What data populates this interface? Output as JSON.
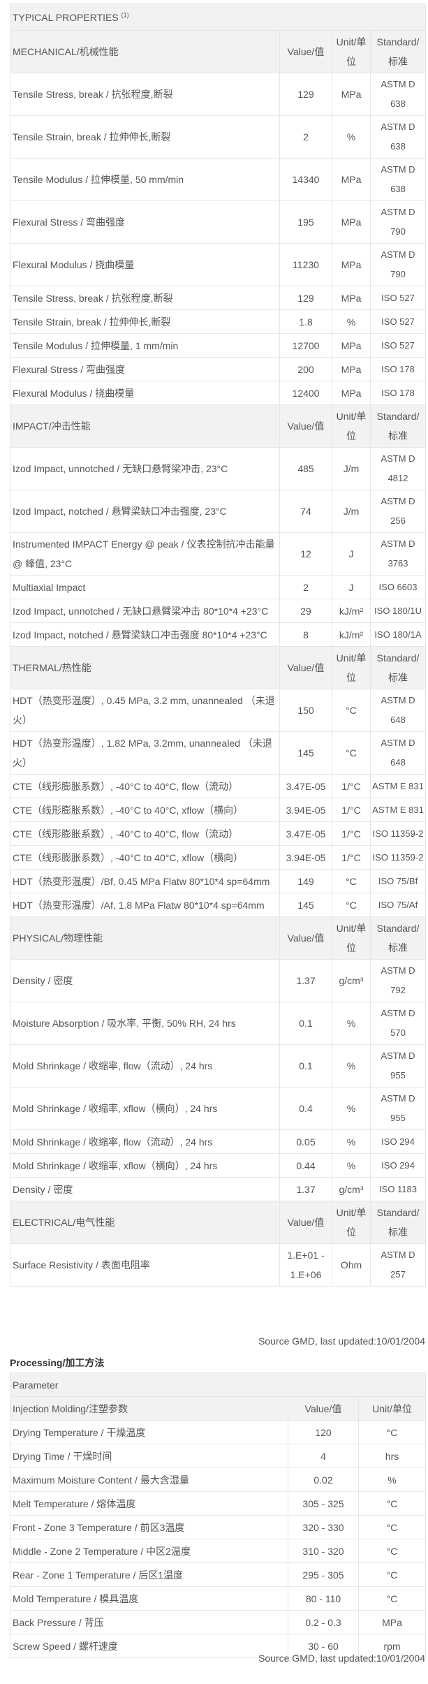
{
  "properties": {
    "title": "TYPICAL PROPERTIES",
    "title_note": "(1)",
    "col_value": "Value/值",
    "col_unit": "Unit/单位",
    "col_standard": "Standard/标准",
    "sections": [
      {
        "name": "MECHANICAL/机械性能",
        "rows": [
          {
            "property": "Tensile Stress, break / 抗张程度,断裂",
            "value": "129",
            "unit": "MPa",
            "standard": "ASTM D 638"
          },
          {
            "property": "Tensile Strain, break / 拉伸伸长,断裂",
            "value": "2",
            "unit": "%",
            "standard": "ASTM D 638"
          },
          {
            "property": "Tensile Modulus / 拉伸模量, 50 mm/min",
            "value": "14340",
            "unit": "MPa",
            "standard": "ASTM D 638"
          },
          {
            "property": "Flexural Stress / 弯曲强度",
            "value": "195",
            "unit": "MPa",
            "standard": "ASTM D 790"
          },
          {
            "property": "Flexural Modulus / 挠曲模量",
            "value": "11230",
            "unit": "MPa",
            "standard": "ASTM D 790"
          },
          {
            "property": "Tensile Stress, break / 抗张程度,断裂",
            "value": "129",
            "unit": "MPa",
            "standard": "ISO 527"
          },
          {
            "property": "Tensile Strain, break / 拉伸伸长,断裂",
            "value": "1.8",
            "unit": "%",
            "standard": "ISO 527"
          },
          {
            "property": "Tensile Modulus / 拉伸模量, 1 mm/min",
            "value": "12700",
            "unit": "MPa",
            "standard": "ISO 527"
          },
          {
            "property": "Flexural Stress / 弯曲强度",
            "value": "200",
            "unit": "MPa",
            "standard": "ISO 178"
          },
          {
            "property": "Flexural Modulus / 挠曲模量",
            "value": "12400",
            "unit": "MPa",
            "standard": "ISO 178"
          }
        ]
      },
      {
        "name": "IMPACT/冲击性能",
        "rows": [
          {
            "property": "Izod Impact, unnotched / 无缺口悬臂梁冲击, 23°C",
            "value": "485",
            "unit": "J/m",
            "standard": "ASTM D 4812"
          },
          {
            "property": "Izod Impact, notched / 悬臂梁缺口冲击强度, 23°C",
            "value": "74",
            "unit": "J/m",
            "standard": "ASTM D 256"
          },
          {
            "property": "Instrumented IMPACT Energy @ peak / 仪表控制抗冲击能量 @ 峰值, 23°C",
            "value": "12",
            "unit": "J",
            "standard": "ASTM D 3763"
          },
          {
            "property": "Multiaxial Impact",
            "value": "2",
            "unit": "J",
            "standard": "ISO 6603"
          },
          {
            "property": "Izod Impact, unnotched / 无缺口悬臂梁冲击 80*10*4 +23°C",
            "value": "29",
            "unit": "kJ/m²",
            "standard": "ISO 180/1U"
          },
          {
            "property": "Izod Impact, notched / 悬臂梁缺口冲击强度 80*10*4 +23°C",
            "value": "8",
            "unit": "kJ/m²",
            "standard": "ISO 180/1A"
          }
        ]
      },
      {
        "name": "THERMAL/热性能",
        "rows": [
          {
            "property": "HDT（热变形温度）, 0.45 MPa, 3.2 mm, unannealed （未退火）",
            "value": "150",
            "unit": "°C",
            "standard": "ASTM D 648"
          },
          {
            "property": "HDT（热变形温度）, 1.82 MPa, 3.2mm, unannealed （未退火）",
            "value": "145",
            "unit": "°C",
            "standard": "ASTM D 648"
          },
          {
            "property": "CTE（线形膨胀系数）, -40°C to 40°C, flow（流动）",
            "value": "3.47E-05",
            "unit": "1/°C",
            "standard": "ASTM E 831"
          },
          {
            "property": "CTE（线形膨胀系数）, -40°C to 40°C, xflow（横向）",
            "value": "3.94E-05",
            "unit": "1/°C",
            "standard": "ASTM E 831"
          },
          {
            "property": "CTE（线形膨胀系数）, -40°C to 40°C, flow（流动）",
            "value": "3.47E-05",
            "unit": "1/°C",
            "standard": "ISO 11359-2"
          },
          {
            "property": "CTE（线形膨胀系数）, -40°C to 40°C, xflow（横向）",
            "value": "3.94E-05",
            "unit": "1/°C",
            "standard": "ISO 11359-2"
          },
          {
            "property": "HDT（热变形温度）/Bf, 0.45 MPa Flatw 80*10*4 sp=64mm",
            "value": "149",
            "unit": "°C",
            "standard": "ISO 75/Bf"
          },
          {
            "property": "HDT（热变形温度）/Af, 1.8 MPa Flatw 80*10*4 sp=64mm",
            "value": "145",
            "unit": "°C",
            "standard": "ISO 75/Af"
          }
        ]
      },
      {
        "name": "PHYSICAL/物理性能",
        "rows": [
          {
            "property": "Density / 密度",
            "value": "1.37",
            "unit": "g/cm³",
            "standard": "ASTM D 792"
          },
          {
            "property": "Moisture Absorption / 吸水率, 平衡, 50% RH, 24 hrs",
            "value": "0.1",
            "unit": "%",
            "standard": "ASTM D 570"
          },
          {
            "property": "Mold Shrinkage / 收缩率, flow（流动）, 24 hrs",
            "value": "0.1",
            "unit": "%",
            "standard": "ASTM D 955"
          },
          {
            "property": "Mold Shrinkage / 收缩率, xflow（横向）, 24 hrs",
            "value": "0.4",
            "unit": "%",
            "standard": "ASTM D 955"
          },
          {
            "property": "Mold Shrinkage / 收缩率, flow（流动）, 24 hrs",
            "value": "0.05",
            "unit": "%",
            "standard": "ISO 294"
          },
          {
            "property": "Mold Shrinkage / 收缩率, xflow（横向）, 24 hrs",
            "value": "0.44",
            "unit": "%",
            "standard": "ISO 294"
          },
          {
            "property": "Density / 密度",
            "value": "1.37",
            "unit": "g/cm³",
            "standard": "ISO 1183"
          }
        ]
      },
      {
        "name": "ELECTRICAL/电气性能",
        "rows": [
          {
            "property": "Surface Resistivity / 表面电阻率",
            "value": "1.E+01 - 1.E+06",
            "unit": "Ohm",
            "standard": "ASTM D 257"
          }
        ]
      }
    ],
    "footer": "Source GMD, last updated:10/01/2004"
  },
  "processing": {
    "title": "Processing/加工方法",
    "parameter_label": "Parameter",
    "section": "Injection Molding/注塑参数",
    "col_value": "Value/值",
    "col_unit": "Unit/单位",
    "rows": [
      {
        "property": "Drying Temperature / 干燥温度",
        "value": "120",
        "unit": "°C"
      },
      {
        "property": "Drying Time / 干燥时间",
        "value": "4",
        "unit": "hrs"
      },
      {
        "property": "Maximum Moisture Content / 最大含湿量",
        "value": "0.02",
        "unit": "%"
      },
      {
        "property": "Melt Temperature / 熔体温度",
        "value": "305 - 325",
        "unit": "°C"
      },
      {
        "property": "Front - Zone 3 Temperature / 前区3温度",
        "value": "320 - 330",
        "unit": "°C"
      },
      {
        "property": "Middle - Zone 2 Temperature / 中区2温度",
        "value": "310 - 320",
        "unit": "°C"
      },
      {
        "property": "Rear - Zone 1 Temperature / 后区1温度",
        "value": "295 - 305",
        "unit": "°C"
      },
      {
        "property": "Mold Temperature / 模具温度",
        "value": "80 - 110",
        "unit": "°C"
      },
      {
        "property": "Back Pressure / 背压",
        "value": "0.2 - 0.3",
        "unit": "MPa"
      },
      {
        "property": "Screw Speed / 螺杆速度",
        "value": "30 - 60",
        "unit": "rpm"
      }
    ],
    "footer": "Source GMD, last updated:10/01/2004"
  }
}
